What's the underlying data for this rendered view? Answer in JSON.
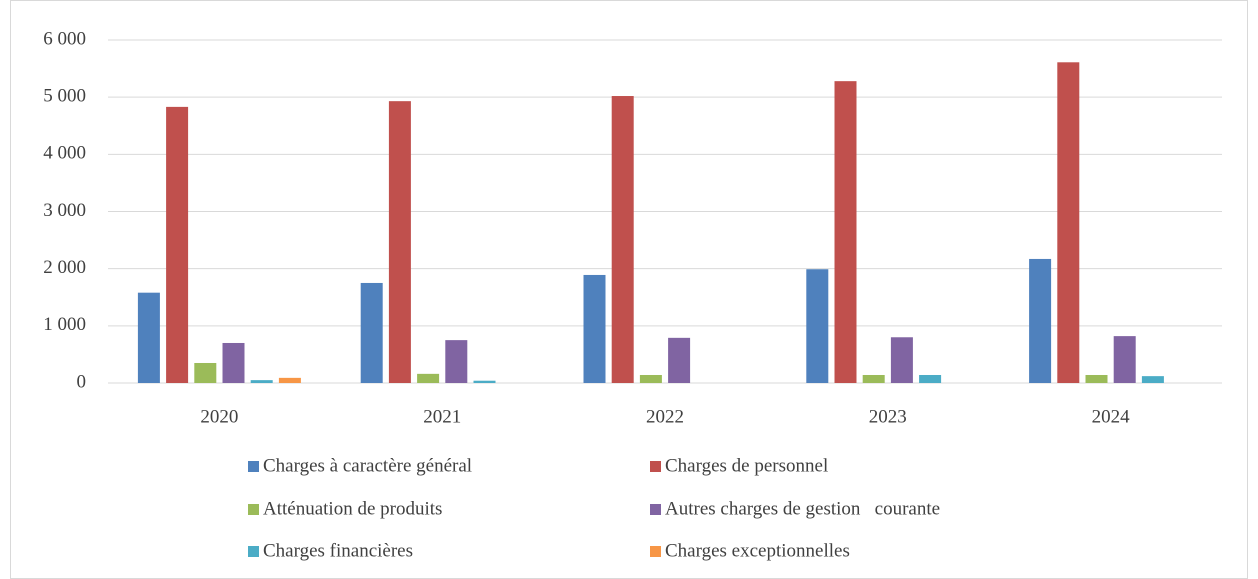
{
  "chart_data": {
    "type": "bar",
    "categories": [
      "2020",
      "2021",
      "2022",
      "2023",
      "2024"
    ],
    "series": [
      {
        "name": "Charges à caractère général",
        "color": "#4f81bd",
        "values": [
          1580,
          1750,
          1890,
          1990,
          2170
        ]
      },
      {
        "name": "Charges de personnel",
        "color": "#c0504d",
        "values": [
          4830,
          4930,
          5020,
          5280,
          5610
        ]
      },
      {
        "name": "Atténuation de produits",
        "color": "#9bbb59",
        "values": [
          350,
          160,
          140,
          140,
          140
        ]
      },
      {
        "name": "Autres charges de gestion   courante",
        "color": "#8064a2",
        "values": [
          700,
          750,
          790,
          800,
          820
        ]
      },
      {
        "name": "Charges financières",
        "color": "#4bacc6",
        "values": [
          50,
          40,
          0,
          140,
          120
        ]
      },
      {
        "name": "Charges exceptionnelles",
        "color": "#f79646",
        "values": [
          90,
          0,
          0,
          0,
          0
        ]
      }
    ],
    "ylim": [
      0,
      6000
    ],
    "yticks": [
      0,
      {
        "value": 1000,
        "label": "1 000"
      },
      {
        "value": 2000,
        "label": "2 000"
      },
      {
        "value": 3000,
        "label": "3 000"
      },
      {
        "value": 4000,
        "label": "4 000"
      },
      {
        "value": 5000,
        "label": "5 000"
      },
      {
        "value": 6000,
        "label": "6 000"
      }
    ],
    "grid": true,
    "legend": "bottom"
  }
}
